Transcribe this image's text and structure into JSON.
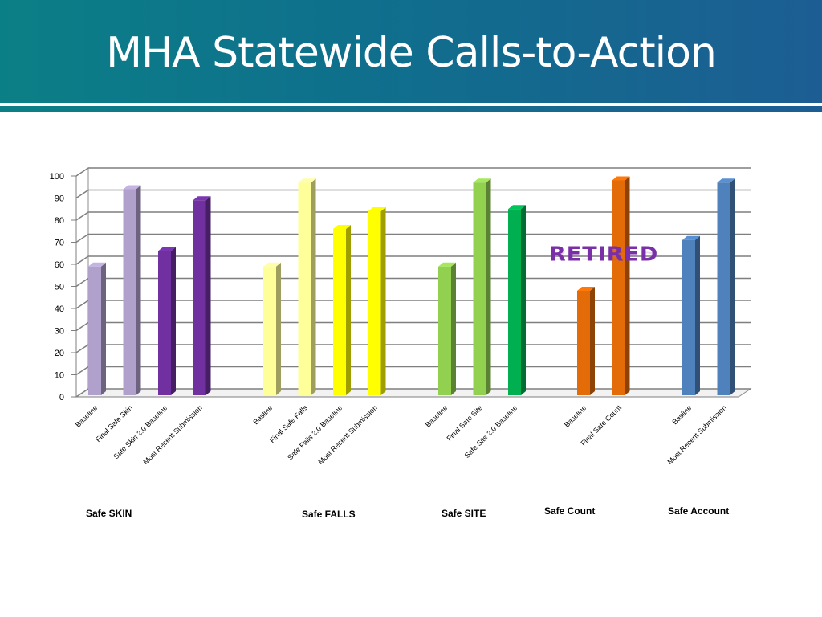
{
  "slide": {
    "title": "MHA Statewide Calls-to-Action",
    "annotation": "RETIRED"
  },
  "colors": {
    "header_start": "#0b7f86",
    "header_end": "#1c5e93",
    "retired_text": "#7a2fa8"
  },
  "chart_data": {
    "type": "bar",
    "title": "",
    "xlabel": "",
    "ylabel": "",
    "ylim": [
      0,
      100
    ],
    "yticks": [
      0,
      10,
      20,
      30,
      40,
      50,
      60,
      70,
      80,
      90,
      100
    ],
    "grid": true,
    "three_d": true,
    "groups": [
      {
        "name": "Safe SKIN",
        "bars": [
          {
            "category": "Baseline",
            "value": 59,
            "color": "#b0a0cc"
          },
          {
            "category": "Final Safe Skin",
            "value": 94,
            "color": "#b0a0cc"
          },
          {
            "category": "Safe Skin 2.0 Baseline",
            "value": 66,
            "color": "#7030a0"
          },
          {
            "category": "Most Recent Submission",
            "value": 89,
            "color": "#7030a0"
          }
        ]
      },
      {
        "name": "Safe FALLS",
        "bars": [
          {
            "category": "Basline",
            "value": 59,
            "color": "#ffff99"
          },
          {
            "category": "Final Safe Falls",
            "value": 97,
            "color": "#ffff99"
          },
          {
            "category": "Safe Falls 2.0 Baseline",
            "value": 76,
            "color": "#ffff00"
          },
          {
            "category": "Most Recent Submission",
            "value": 84,
            "color": "#ffff00"
          }
        ]
      },
      {
        "name": "Safe SITE",
        "bars": [
          {
            "category": "Baseline",
            "value": 59,
            "color": "#92d050"
          },
          {
            "category": "Final Safe Site",
            "value": 97,
            "color": "#92d050"
          },
          {
            "category": "Safe Site 2.0 Baseline",
            "value": 85,
            "color": "#00b050"
          }
        ]
      },
      {
        "name": "Safe Count",
        "bars": [
          {
            "category": "Baseline",
            "value": 48,
            "color": "#e36c09"
          },
          {
            "category": "Final Safe Count",
            "value": 98,
            "color": "#e36c09"
          }
        ]
      },
      {
        "name": "Safe Account",
        "bars": [
          {
            "category": "Basline",
            "value": 71,
            "color": "#4f81bd"
          },
          {
            "category": "Most Recent Submission",
            "value": 97,
            "color": "#4f81bd"
          }
        ]
      }
    ]
  }
}
